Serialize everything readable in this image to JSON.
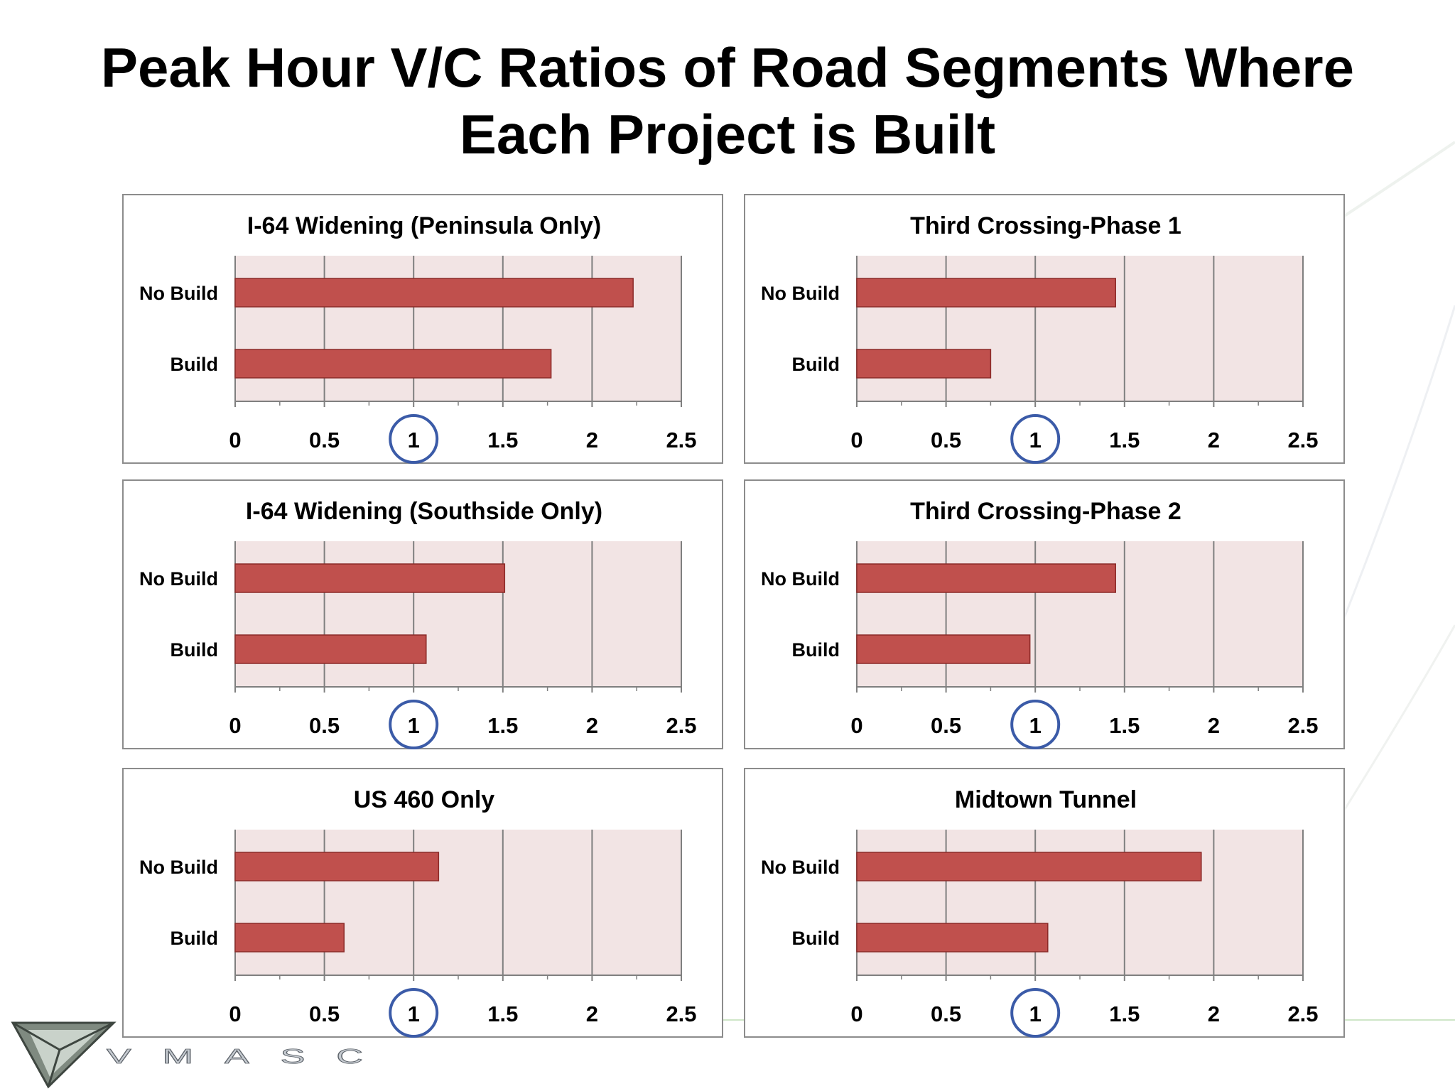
{
  "slide": {
    "title_line1": "Peak Hour V/C Ratios of Road Segments Where",
    "title_line2": "Each Project is Built"
  },
  "logo": {
    "text": "VMASC"
  },
  "colors": {
    "bar": "#c0504d",
    "bar_border": "#8b2a28",
    "plot_bg": "#f2e4e4",
    "grid": "#7f7f7f",
    "circle": "#3b5ba8"
  },
  "chart_data": [
    {
      "type": "bar",
      "orientation": "horizontal",
      "title": "I-64 Widening (Peninsula  Only)",
      "categories": [
        "No Build",
        "Build"
      ],
      "values": [
        2.23,
        1.77
      ],
      "xlim": [
        0,
        2.5
      ],
      "xticks": [
        "0",
        "0.5",
        "1",
        "1.5",
        "2",
        "2.5"
      ],
      "highlighted_tick": "1",
      "grid": true,
      "legend": "none"
    },
    {
      "type": "bar",
      "orientation": "horizontal",
      "title": "Third Crossing-Phase  1",
      "categories": [
        "No Build",
        "Build"
      ],
      "values": [
        1.45,
        0.75
      ],
      "xlim": [
        0,
        2.5
      ],
      "xticks": [
        "0",
        "0.5",
        "1",
        "1.5",
        "2",
        "2.5"
      ],
      "highlighted_tick": "1",
      "grid": true,
      "legend": "none"
    },
    {
      "type": "bar",
      "orientation": "horizontal",
      "title": "I-64  Widening (Southside  Only)",
      "categories": [
        "No Build",
        "Build"
      ],
      "values": [
        1.51,
        1.07
      ],
      "xlim": [
        0,
        2.5
      ],
      "xticks": [
        "0",
        "0.5",
        "1",
        "1.5",
        "2",
        "2.5"
      ],
      "highlighted_tick": "1",
      "grid": true,
      "legend": "none"
    },
    {
      "type": "bar",
      "orientation": "horizontal",
      "title": "Third Crossing-Phase  2",
      "categories": [
        "No Build",
        "Build"
      ],
      "values": [
        1.45,
        0.97
      ],
      "xlim": [
        0,
        2.5
      ],
      "xticks": [
        "0",
        "0.5",
        "1",
        "1.5",
        "2",
        "2.5"
      ],
      "highlighted_tick": "1",
      "grid": true,
      "legend": "none"
    },
    {
      "type": "bar",
      "orientation": "horizontal",
      "title": "US 460 Only",
      "categories": [
        "No Build",
        "Build"
      ],
      "values": [
        1.14,
        0.61
      ],
      "xlim": [
        0,
        2.5
      ],
      "xticks": [
        "0",
        "0.5",
        "1",
        "1.5",
        "2",
        "2.5"
      ],
      "highlighted_tick": "1",
      "grid": true,
      "legend": "none"
    },
    {
      "type": "bar",
      "orientation": "horizontal",
      "title": "Midtown Tunnel",
      "categories": [
        "No Build",
        "Build"
      ],
      "values": [
        1.93,
        1.07
      ],
      "xlim": [
        0,
        2.5
      ],
      "xticks": [
        "0",
        "0.5",
        "1",
        "1.5",
        "2",
        "2.5"
      ],
      "highlighted_tick": "1",
      "grid": true,
      "legend": "none"
    }
  ]
}
